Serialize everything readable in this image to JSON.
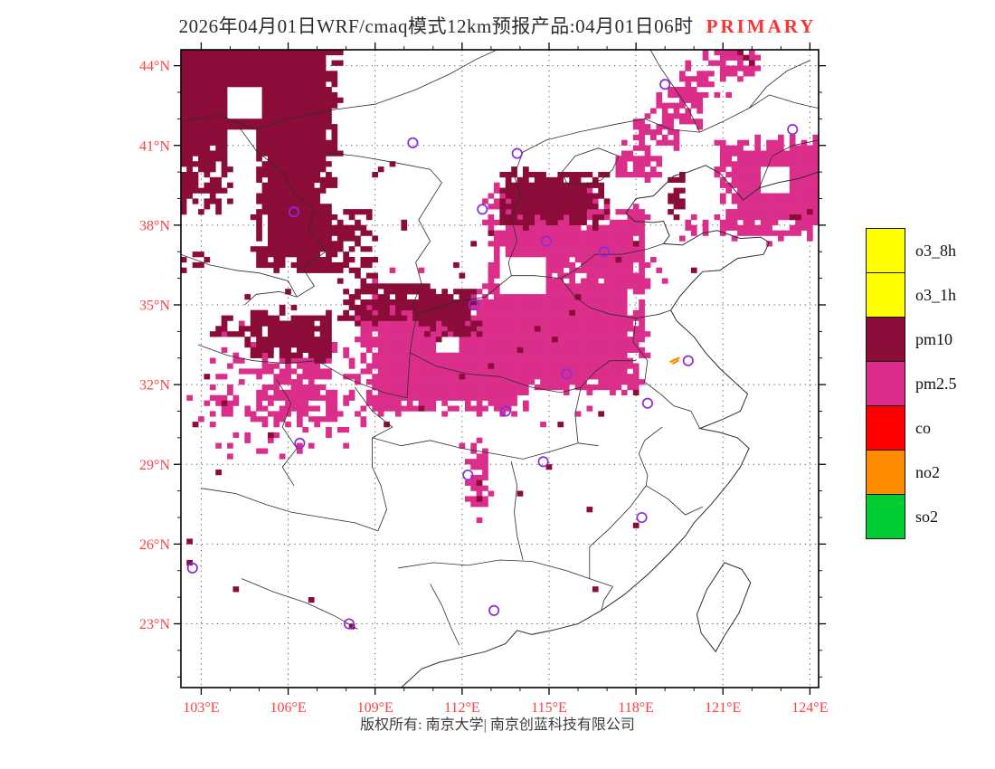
{
  "title": {
    "main": "2026年04月01日WRF/cmaq模式12km预报产品:04月01日06时",
    "highlight": "PRIMARY"
  },
  "footer": {
    "copyright": "版权所有: 南京大学| 南京创蓝科技有限公司"
  },
  "colors": {
    "pm10": "#8B0C38",
    "pm25": "#DB2E8B",
    "o3": "#FFFF00",
    "co": "#FF0000",
    "no2": "#FF8C00",
    "so2": "#00CC33",
    "axis_label": "#FF4040",
    "title_highlight": "#FF3333",
    "city_marker": "#8A2BE2",
    "boundary": "#2d2d2d"
  },
  "legend": {
    "items": [
      {
        "label": "o3_8h",
        "color": "#FFFF00"
      },
      {
        "label": "o3_1h",
        "color": "#FFFF00"
      },
      {
        "label": "pm10",
        "color": "#8B0C38"
      },
      {
        "label": "pm2.5",
        "color": "#DB2E8B"
      },
      {
        "label": "co",
        "color": "#FF0000"
      },
      {
        "label": "no2",
        "color": "#FF8C00"
      },
      {
        "label": "so2",
        "color": "#00CC33"
      }
    ]
  },
  "chart_data": {
    "type": "heatmap",
    "domain": {
      "lon": [
        102.3,
        124.3
      ],
      "lat": [
        20.6,
        44.6
      ]
    },
    "cell_deg": 0.2,
    "lon_ticks": [
      {
        "v": 103,
        "label": "103°E"
      },
      {
        "v": 106,
        "label": "106°E"
      },
      {
        "v": 109,
        "label": "109°E"
      },
      {
        "v": 112,
        "label": "112°E"
      },
      {
        "v": 115,
        "label": "115°E"
      },
      {
        "v": 118,
        "label": "118°E"
      },
      {
        "v": 121,
        "label": "121°E"
      },
      {
        "v": 124,
        "label": "124°E"
      }
    ],
    "lat_ticks": [
      {
        "v": 23,
        "label": "23°N"
      },
      {
        "v": 26,
        "label": "26°N"
      },
      {
        "v": 29,
        "label": "29°N"
      },
      {
        "v": 32,
        "label": "32°N"
      },
      {
        "v": 35,
        "label": "35°N"
      },
      {
        "v": 38,
        "label": "38°N"
      },
      {
        "v": 41,
        "label": "41°N"
      },
      {
        "v": 44,
        "label": "44°N"
      }
    ],
    "pm25": {
      "regions": [
        {
          "r": [
            108.6,
            31.0,
            114.3,
            35.1
          ],
          "s": 11
        },
        {
          "r": [
            112.8,
            31.8,
            118.2,
            36.3
          ],
          "s": 12
        },
        {
          "r": [
            113.0,
            36.3,
            116.6,
            39.3
          ],
          "s": 13
        },
        {
          "r": [
            115.8,
            35.6,
            118.3,
            38.5
          ],
          "s": 14
        },
        {
          "r": [
            104.9,
            30.6,
            107.4,
            33.3
          ],
          "s": 15,
          "d": 0.85
        },
        {
          "r": [
            103.3,
            29.4,
            108.6,
            33.6
          ],
          "s": 16,
          "d": 0.18
        },
        {
          "r": [
            117.4,
            39.8,
            118.8,
            41.0
          ],
          "s": 17
        },
        {
          "r": [
            118.0,
            40.9,
            119.4,
            42.0
          ],
          "s": 18
        },
        {
          "r": [
            118.8,
            41.9,
            120.2,
            43.0
          ],
          "s": 19
        },
        {
          "r": [
            119.6,
            42.8,
            121.1,
            43.9
          ],
          "s": 20
        },
        {
          "r": [
            120.4,
            43.7,
            122.2,
            44.6
          ],
          "s": 21
        },
        {
          "r": [
            121.0,
            37.7,
            124.3,
            41.2
          ],
          "s": 22
        },
        {
          "r": [
            112.25,
            27.35,
            112.8,
            29.65
          ],
          "s": 23
        },
        {
          "r": [
            119.5,
            37.6,
            120.4,
            38.1
          ],
          "s": 24,
          "d": 0.7
        }
      ],
      "holes": [
        [
          113.4,
          35.5,
          114.9,
          36.9
        ],
        [
          122.3,
          39.2,
          123.3,
          40.2
        ],
        [
          111.2,
          33.2,
          111.9,
          33.9
        ]
      ],
      "cells": [
        [
          103.3,
          32.9
        ],
        [
          103.9,
          31.9
        ],
        [
          104.5,
          31.1
        ],
        [
          103.0,
          30.7
        ],
        [
          103.6,
          29.8
        ],
        [
          104.1,
          29.3
        ],
        [
          105.1,
          29.5
        ],
        [
          105.8,
          29.4
        ],
        [
          106.4,
          29.8
        ],
        [
          107.0,
          30.5
        ],
        [
          107.6,
          31.3
        ],
        [
          108.2,
          31.8
        ],
        [
          103.2,
          31.3
        ],
        [
          102.6,
          31.5
        ],
        [
          118.8,
          36.4
        ],
        [
          119.1,
          36.0
        ],
        [
          118.6,
          36.8
        ],
        [
          116.3,
          31.2
        ],
        [
          115.9,
          30.9
        ],
        [
          114.8,
          30.5
        ],
        [
          108.9,
          35.9
        ],
        [
          109.6,
          36.3
        ],
        [
          104.3,
          34.2
        ],
        [
          103.7,
          34.0
        ],
        [
          110.5,
          36.3
        ],
        [
          122.5,
          37.3
        ],
        [
          123.0,
          37.5
        ],
        [
          112.5,
          26.9
        ]
      ]
    },
    "pm10": {
      "regions": [
        {
          "r": [
            102.3,
            40.6,
            107.7,
            44.6
          ],
          "s": 31
        },
        {
          "r": [
            102.3,
            38.7,
            103.8,
            41.2
          ],
          "s": 32,
          "d": 0.8
        },
        {
          "r": [
            104.9,
            36.4,
            107.4,
            41.3
          ],
          "s": 33
        },
        {
          "r": [
            106.6,
            36.3,
            108.8,
            38.5
          ],
          "s": 34,
          "d": 0.75
        },
        {
          "r": [
            104.8,
            33.0,
            107.4,
            34.8
          ],
          "s": 35
        },
        {
          "r": [
            103.4,
            33.9,
            105.0,
            34.6
          ],
          "s": 36,
          "d": 0.55
        },
        {
          "r": [
            108.0,
            34.5,
            110.8,
            35.7
          ],
          "s": 37
        },
        {
          "r": [
            110.5,
            33.9,
            112.5,
            35.6
          ],
          "s": 38
        },
        {
          "r": [
            113.3,
            38.0,
            116.8,
            40.0
          ],
          "s": 39
        },
        {
          "r": [
            119.1,
            38.3,
            119.7,
            39.9
          ],
          "s": 40,
          "d": 0.85
        },
        {
          "r": [
            102.3,
            36.2,
            103.1,
            37.2
          ],
          "s": 41,
          "d": 0.6
        }
      ],
      "holes": [
        [
          104.0,
          42.0,
          105.1,
          43.1
        ],
        [
          103.9,
          40.4,
          104.9,
          41.6
        ]
      ],
      "cells": [
        [
          109.2,
          40.1
        ],
        [
          109.6,
          40.4
        ],
        [
          109.0,
          39.9
        ],
        [
          109.9,
          38.1
        ],
        [
          110.1,
          38.0
        ],
        [
          103.2,
          32.2
        ],
        [
          103.8,
          31.4
        ],
        [
          102.8,
          30.5
        ],
        [
          103.6,
          28.8
        ],
        [
          105.4,
          30.2
        ],
        [
          102.5,
          26.1
        ],
        [
          102.6,
          25.3
        ],
        [
          104.2,
          24.4
        ],
        [
          106.7,
          23.9
        ],
        [
          108.2,
          23.0
        ],
        [
          114.0,
          27.9
        ],
        [
          115.0,
          29.0
        ],
        [
          116.3,
          27.3
        ],
        [
          118.1,
          26.8
        ],
        [
          116.5,
          24.3
        ],
        [
          115.4,
          30.5
        ],
        [
          116.7,
          31.0
        ],
        [
          117.9,
          31.8
        ],
        [
          112.55,
          27.6
        ],
        [
          112.5,
          28.3
        ],
        [
          121.7,
          44.3
        ],
        [
          121.9,
          44.1
        ],
        [
          121.5,
          44.45
        ],
        [
          123.3,
          38.4
        ],
        [
          123.6,
          38.2
        ],
        [
          124.0,
          38.5
        ],
        [
          108.6,
          36.0
        ],
        [
          109.3,
          35.8
        ],
        [
          107.8,
          35.9
        ],
        [
          111.7,
          36.5
        ],
        [
          112.3,
          37.3
        ],
        [
          112.0,
          36.1
        ],
        [
          113.0,
          37.8
        ],
        [
          105.9,
          35.5
        ],
        [
          104.6,
          35.2
        ],
        [
          110.6,
          31.1
        ],
        [
          109.4,
          30.5
        ],
        [
          117.3,
          36.6
        ],
        [
          117.9,
          37.2
        ],
        [
          120.0,
          36.3
        ],
        [
          114.5,
          34.1
        ],
        [
          115.2,
          33.6
        ],
        [
          113.9,
          33.2
        ],
        [
          112.9,
          32.6
        ],
        [
          111.9,
          32.2
        ],
        [
          116.1,
          35.2
        ],
        [
          115.7,
          34.7
        ]
      ]
    },
    "cities": [
      [
        119.0,
        43.3
      ],
      [
        110.3,
        41.1
      ],
      [
        113.9,
        40.7
      ],
      [
        106.2,
        38.5
      ],
      [
        112.7,
        38.6
      ],
      [
        114.9,
        37.4
      ],
      [
        112.4,
        35.0
      ],
      [
        115.6,
        32.4
      ],
      [
        119.8,
        32.9
      ],
      [
        118.4,
        31.3
      ],
      [
        113.5,
        31.0
      ],
      [
        106.4,
        29.8
      ],
      [
        112.2,
        28.6
      ],
      [
        114.8,
        29.1
      ],
      [
        118.2,
        27.0
      ],
      [
        108.1,
        23.0
      ],
      [
        113.1,
        23.5
      ],
      [
        102.7,
        25.1
      ],
      [
        116.9,
        37.0
      ],
      [
        123.4,
        41.6
      ]
    ],
    "special_marker": {
      "lon": 119.35,
      "lat": 32.95
    }
  }
}
